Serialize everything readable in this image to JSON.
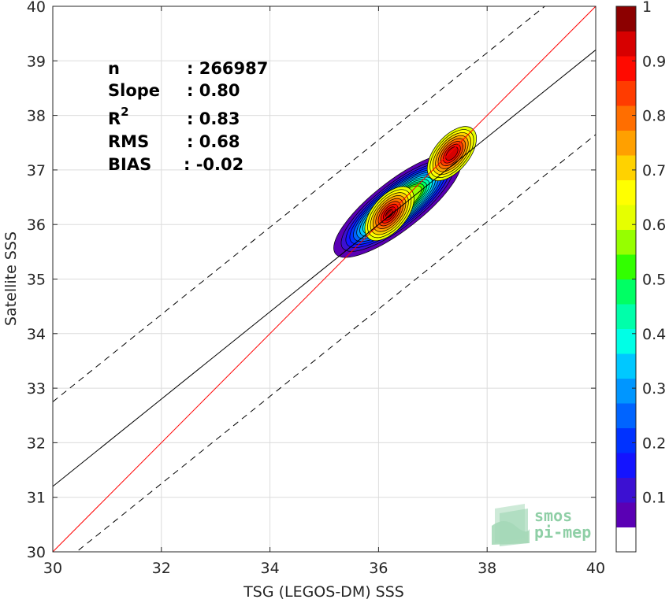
{
  "chart_data": {
    "type": "contour-density-scatter",
    "xlabel": "TSG (LEGOS-DM) SSS",
    "ylabel": "Satellite SSS",
    "xlim": [
      30,
      40
    ],
    "ylim": [
      30,
      40
    ],
    "x_ticks": [
      30,
      32,
      34,
      36,
      38,
      40
    ],
    "y_ticks": [
      30,
      31,
      32,
      33,
      34,
      35,
      36,
      37,
      38,
      39,
      40
    ],
    "grid": true,
    "stats": [
      {
        "label": "n",
        "value": ": 266987"
      },
      {
        "label": "Slope",
        "value": ": 0.80"
      },
      {
        "label": "R",
        "sup": "2",
        "value": ": 0.83"
      },
      {
        "label": "RMS",
        "value": ": 0.68"
      },
      {
        "label": "BIAS",
        "value": ": -0.02"
      }
    ],
    "reference_lines": [
      {
        "name": "1:1 line",
        "style": "solid",
        "color": "#ff0000",
        "slope": 1.0,
        "intercept": 0.0
      },
      {
        "name": "regression fit",
        "style": "solid",
        "color": "#000000",
        "slope": 0.8,
        "intercept": 7.2
      },
      {
        "name": "upper bound",
        "style": "dashed",
        "color": "#000000",
        "slope": 0.8,
        "intercept": 8.75
      },
      {
        "name": "lower bound",
        "style": "dashed",
        "color": "#000000",
        "slope": 0.8,
        "intercept": 5.65
      }
    ],
    "density_peaks": [
      {
        "x": 36.2,
        "y": 36.2,
        "value": 1.0
      },
      {
        "x": 37.35,
        "y": 37.3,
        "value": 0.95
      }
    ],
    "colorbar": {
      "range": [
        0,
        1
      ],
      "ticks": [
        {
          "value": 0.1,
          "label": "0.1"
        },
        {
          "value": 0.2,
          "label": "0.2"
        },
        {
          "value": 0.3,
          "label": "0.3"
        },
        {
          "value": 0.4,
          "label": "0.4"
        },
        {
          "value": 0.5,
          "label": "0.5"
        },
        {
          "value": 0.6,
          "label": "0.6"
        },
        {
          "value": 0.7,
          "label": "0.7"
        },
        {
          "value": 0.8,
          "label": "0.8"
        },
        {
          "value": 0.9,
          "label": "0.9"
        },
        {
          "value": 1.0,
          "label": "1"
        }
      ],
      "colors": [
        "#ffffff",
        "#5a00b4",
        "#3c10d2",
        "#1414ff",
        "#0032ff",
        "#0064ff",
        "#0096ff",
        "#00c8ff",
        "#00ffe6",
        "#00ffaa",
        "#00ff64",
        "#32ff00",
        "#96ff00",
        "#e6ff00",
        "#ffff00",
        "#ffd200",
        "#ffa000",
        "#ff6e00",
        "#ff3c00",
        "#ff0a00",
        "#d70000",
        "#8c0000"
      ]
    }
  },
  "logo": {
    "line1": "smos",
    "line2": "pi-mep"
  }
}
